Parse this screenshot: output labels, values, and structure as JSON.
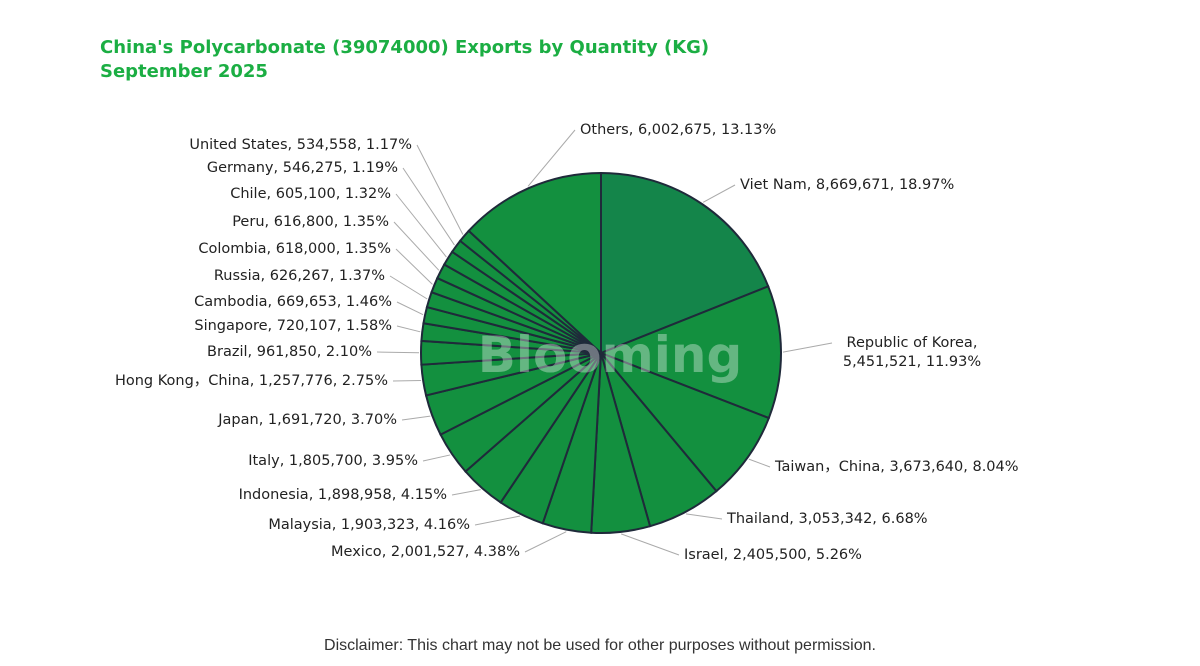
{
  "chart_data": {
    "type": "pie",
    "title": "China's Polycarbonate (39074000) Exports by Quantity (KG)",
    "subtitle": "September 2025",
    "categories": [
      "Viet Nam",
      "Republic of Korea",
      "Taiwan，China",
      "Thailand",
      "Israel",
      "Mexico",
      "Malaysia",
      "Indonesia",
      "Italy",
      "Japan",
      "Hong Kong，China",
      "Brazil",
      "Singapore",
      "Cambodia",
      "Russia",
      "Colombia",
      "Peru",
      "Chile",
      "Germany",
      "United States",
      "Others"
    ],
    "values": [
      8669671,
      5451521,
      3673640,
      3053342,
      2405500,
      2001527,
      1903323,
      1898958,
      1805700,
      1691720,
      1257776,
      961850,
      720107,
      669653,
      626267,
      618000,
      616800,
      605100,
      546275,
      534558,
      6002675
    ],
    "value_labels": [
      "8,669,671",
      "5,451,521",
      "3,673,640",
      "3,053,342",
      "2,405,500",
      "2,001,527",
      "1,903,323",
      "1,898,958",
      "1,805,700",
      "1,691,720",
      "1,257,776",
      "961,850",
      "720,107",
      "669,653",
      "626,267",
      "618,000",
      "616,800",
      "605,100",
      "546,275",
      "534,558",
      "6,002,675"
    ],
    "percentages": [
      18.97,
      11.93,
      8.04,
      6.68,
      5.26,
      4.38,
      4.16,
      4.15,
      3.95,
      3.7,
      2.75,
      2.1,
      1.58,
      1.46,
      1.37,
      1.35,
      1.35,
      1.32,
      1.19,
      1.17,
      13.13
    ],
    "percentage_labels": [
      "18.97%",
      "11.93%",
      "8.04%",
      "6.68%",
      "5.26%",
      "4.38%",
      "4.16%",
      "4.15%",
      "3.95%",
      "3.70%",
      "2.75%",
      "2.10%",
      "1.58%",
      "1.46%",
      "1.37%",
      "1.35%",
      "1.35%",
      "1.32%",
      "1.19%",
      "1.17%",
      "13.13%"
    ],
    "colors": [
      "#14854a",
      "#13903f",
      "#13903f",
      "#13903f",
      "#13903f",
      "#13903f",
      "#13903f",
      "#13903f",
      "#13903f",
      "#13903f",
      "#13903f",
      "#13903f",
      "#13903f",
      "#13903f",
      "#13903f",
      "#13903f",
      "#13903f",
      "#13903f",
      "#13903f",
      "#13903f",
      "#13903f"
    ],
    "watermark": "Blooming",
    "disclaimer": "Disclaimer: This chart may not be used for other purposes without permission."
  }
}
